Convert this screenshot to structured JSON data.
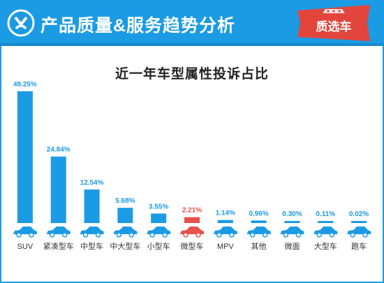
{
  "header": {
    "title": "产品质量&服务趋势分析",
    "badge": "质选车"
  },
  "colors": {
    "header_bg": "#1b9be3",
    "bar": "#1b9be3",
    "bar_highlight": "#e8524a",
    "label": "#1b9be3",
    "label_highlight": "#e8524a",
    "badge_bg": "#e2453c"
  },
  "chart_data": {
    "type": "bar",
    "title": "近一年车型属性投诉占比",
    "categories": [
      "SUV",
      "紧凑型车",
      "中型车",
      "中大型车",
      "小型车",
      "微型车",
      "MPV",
      "其他",
      "微面",
      "大型车",
      "跑车"
    ],
    "values": [
      49.25,
      24.84,
      12.54,
      5.68,
      3.55,
      2.21,
      1.14,
      0.96,
      0.3,
      0.11,
      0.02
    ],
    "value_labels": [
      "49.25%",
      "24.84%",
      "12.54%",
      "5.68%",
      "3.55%",
      "2.21%",
      "1.14%",
      "0.96%",
      "0.30%",
      "0.11%",
      "0.02%"
    ],
    "highlight": "微型车",
    "xlabel": "",
    "ylabel": "",
    "ylim": [
      0,
      50
    ],
    "grid": false,
    "legend": "none"
  }
}
